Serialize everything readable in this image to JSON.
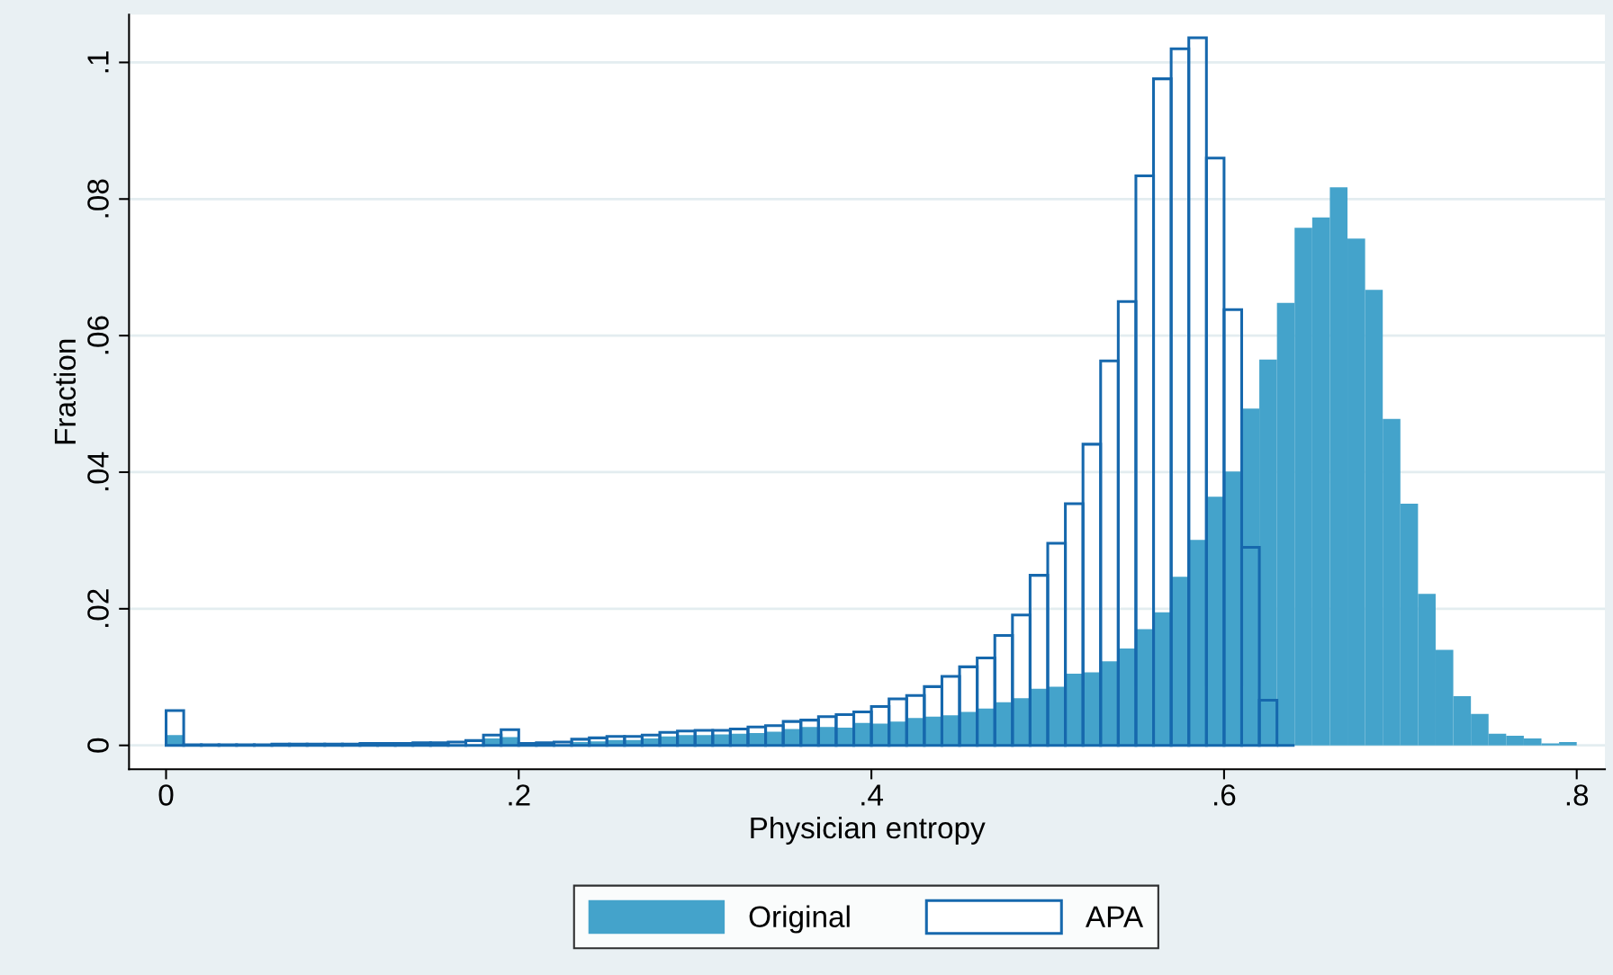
{
  "chart_data": {
    "type": "histogram",
    "xlabel": "Physician entropy",
    "ylabel": "Fraction",
    "xlim": [
      -0.021,
      0.816
    ],
    "xticks": [
      0,
      {
        "value": 0.2,
        "label": ".2"
      },
      {
        "value": 0.4,
        "label": ".4"
      },
      {
        "value": 0.6,
        "label": ".6"
      },
      {
        "value": 0.8,
        "label": ".8"
      }
    ],
    "ylim": [
      -0.0035,
      0.107
    ],
    "yticks": [
      0,
      {
        "value": 0.02,
        "label": ".02"
      },
      {
        "value": 0.04,
        "label": ".04"
      },
      {
        "value": 0.06,
        "label": ".06"
      },
      {
        "value": 0.08,
        "label": ".08"
      },
      {
        "value": 0.1,
        "label": ".1"
      }
    ],
    "grid": "y",
    "legend": "bottom",
    "bins": [
      0,
      0.01,
      0.02,
      0.03,
      0.04,
      0.05,
      0.06,
      0.07,
      0.08,
      0.09,
      0.1,
      0.11,
      0.12,
      0.13,
      0.14,
      0.15,
      0.16,
      0.17,
      0.18,
      0.19,
      0.2,
      0.21,
      0.22,
      0.23,
      0.24,
      0.25,
      0.26,
      0.27,
      0.28,
      0.29,
      0.3,
      0.31,
      0.32,
      0.33,
      0.34,
      0.35,
      0.36,
      0.37,
      0.38,
      0.39,
      0.4,
      0.41,
      0.42,
      0.43,
      0.44,
      0.45,
      0.46,
      0.47,
      0.48,
      0.49,
      0.5,
      0.51,
      0.52,
      0.53,
      0.54,
      0.55,
      0.56,
      0.57,
      0.58,
      0.59,
      0.6,
      0.61,
      0.62,
      0.63,
      0.64,
      0.65,
      0.66,
      0.67,
      0.68,
      0.69,
      0.7,
      0.71,
      0.72,
      0.73,
      0.74,
      0.75,
      0.76,
      0.77,
      0.78,
      0.79,
      0.8
    ],
    "series": [
      {
        "name": "Original",
        "color": "#44a3cb",
        "values": [
          0.0015,
          null,
          null,
          null,
          null,
          null,
          null,
          null,
          null,
          null,
          null,
          null,
          null,
          null,
          null,
          null,
          null,
          null,
          0.001,
          0.0012,
          null,
          null,
          null,
          0.0005,
          0.0006,
          0.0008,
          0.0008,
          0.001,
          0.0013,
          0.0015,
          0.0015,
          0.0016,
          0.0017,
          0.0018,
          0.002,
          0.0024,
          0.0027,
          0.0027,
          0.0026,
          0.0033,
          0.0032,
          0.0035,
          0.004,
          0.0042,
          0.0044,
          0.0049,
          0.0054,
          0.0063,
          0.0069,
          0.0083,
          0.0086,
          0.0105,
          0.0107,
          0.0123,
          0.0142,
          0.017,
          0.0195,
          0.0247,
          0.0301,
          0.0364,
          0.0401,
          0.0493,
          0.0565,
          0.0648,
          0.0758,
          0.0773,
          0.0817,
          0.0742,
          0.0667,
          0.0478,
          0.0354,
          0.0222,
          0.014,
          0.0072,
          0.0046,
          0.0017,
          0.0014,
          0.001,
          0.0003,
          0.0005
        ]
      },
      {
        "name": "APA",
        "color": "#1668ad",
        "values": [
          0.0051,
          0.0001,
          0.0001,
          0.0001,
          0.0001,
          0.0001,
          0.0002,
          0.0002,
          0.0002,
          0.0002,
          0.0002,
          0.0003,
          0.0003,
          0.0003,
          0.0004,
          0.0004,
          0.0005,
          0.0007,
          0.0015,
          0.0023,
          0.0003,
          0.0004,
          0.0005,
          0.0009,
          0.0011,
          0.0013,
          0.0013,
          0.0015,
          0.0019,
          0.0021,
          0.0022,
          0.0022,
          0.0024,
          0.0027,
          0.0029,
          0.0035,
          0.0037,
          0.0042,
          0.0045,
          0.0049,
          0.0057,
          0.0068,
          0.0073,
          0.0086,
          0.0101,
          0.0115,
          0.0128,
          0.0161,
          0.0191,
          0.0249,
          0.0296,
          0.0354,
          0.0441,
          0.0563,
          0.065,
          0.0834,
          0.0976,
          0.102,
          0.1036,
          0.086,
          0.0638,
          0.029,
          0.0066,
          0,
          null,
          null,
          null,
          null,
          null,
          null,
          null,
          null,
          null,
          null,
          null,
          null,
          null,
          null,
          null,
          null
        ]
      }
    ]
  }
}
